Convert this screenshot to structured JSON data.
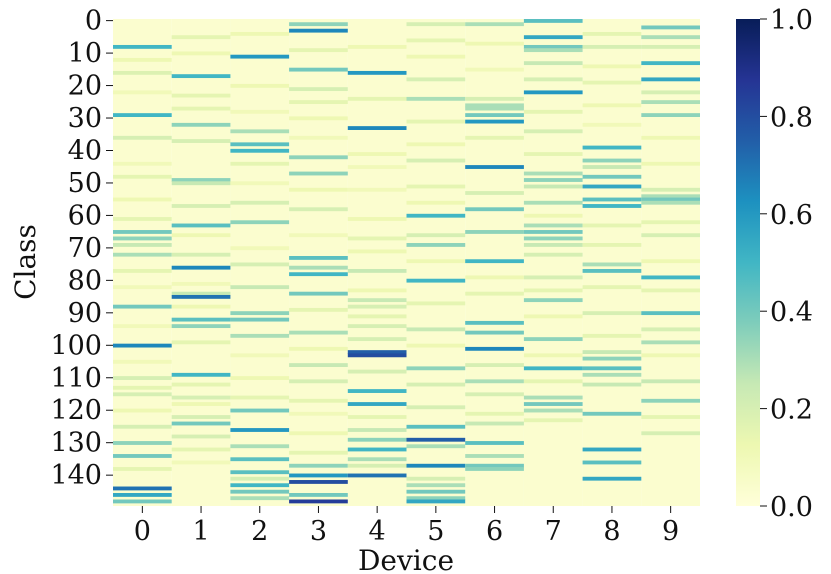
{
  "chart_data": {
    "type": "heatmap",
    "xlabel": "Device",
    "ylabel": "Class",
    "x_categories": [
      "0",
      "1",
      "2",
      "3",
      "4",
      "5",
      "6",
      "7",
      "8",
      "9"
    ],
    "y_tick_labels": [
      "0",
      "10",
      "20",
      "30",
      "40",
      "50",
      "60",
      "70",
      "80",
      "90",
      "100",
      "110",
      "120",
      "130",
      "140"
    ],
    "y_range": [
      0,
      149
    ],
    "colormap": "YlGnBu",
    "colorbar": {
      "range": [
        0.0,
        1.0
      ],
      "tick_labels": [
        "0.0",
        "0.2",
        "0.4",
        "0.6",
        "0.8",
        "1.0"
      ],
      "colors": [
        "#ffffd9",
        "#edf8b1",
        "#c7e9b4",
        "#7fcdbb",
        "#41b6c4",
        "#1d91c0",
        "#225ea8",
        "#253494",
        "#081d58"
      ]
    },
    "background_value": 0.03,
    "grid": false,
    "highlights": [
      {
        "device": 0,
        "cells": [
          [
            8,
            0.5
          ],
          [
            12,
            0.12
          ],
          [
            16,
            0.18
          ],
          [
            22,
            0.1
          ],
          [
            29,
            0.5
          ],
          [
            36,
            0.2
          ],
          [
            44,
            0.1
          ],
          [
            48,
            0.15
          ],
          [
            55,
            0.12
          ],
          [
            61,
            0.15
          ],
          [
            65,
            0.4
          ],
          [
            67,
            0.35
          ],
          [
            69,
            0.25
          ],
          [
            72,
            0.3
          ],
          [
            77,
            0.15
          ],
          [
            82,
            0.1
          ],
          [
            88,
            0.4
          ],
          [
            94,
            0.1
          ],
          [
            100,
            0.65
          ],
          [
            105,
            0.1
          ],
          [
            110,
            0.2
          ],
          [
            113,
            0.15
          ],
          [
            115,
            0.2
          ],
          [
            120,
            0.12
          ],
          [
            125,
            0.2
          ],
          [
            130,
            0.35
          ],
          [
            134,
            0.4
          ],
          [
            138,
            0.15
          ],
          [
            144,
            0.7
          ],
          [
            146,
            0.55
          ],
          [
            148,
            0.4
          ]
        ]
      },
      {
        "device": 1,
        "cells": [
          [
            5,
            0.15
          ],
          [
            10,
            0.12
          ],
          [
            17,
            0.5
          ],
          [
            23,
            0.15
          ],
          [
            27,
            0.15
          ],
          [
            32,
            0.35
          ],
          [
            37,
            0.2
          ],
          [
            49,
            0.35
          ],
          [
            50,
            0.25
          ],
          [
            57,
            0.2
          ],
          [
            63,
            0.45
          ],
          [
            66,
            0.12
          ],
          [
            72,
            0.2
          ],
          [
            76,
            0.65
          ],
          [
            81,
            0.1
          ],
          [
            84,
            0.25
          ],
          [
            85,
            0.7
          ],
          [
            88,
            0.12
          ],
          [
            92,
            0.45
          ],
          [
            94,
            0.35
          ],
          [
            99,
            0.15
          ],
          [
            109,
            0.5
          ],
          [
            112,
            0.15
          ],
          [
            116,
            0.2
          ],
          [
            118,
            0.12
          ],
          [
            122,
            0.2
          ],
          [
            124,
            0.4
          ],
          [
            128,
            0.2
          ],
          [
            132,
            0.15
          ],
          [
            136,
            0.1
          ]
        ]
      },
      {
        "device": 2,
        "cells": [
          [
            4,
            0.12
          ],
          [
            11,
            0.6
          ],
          [
            20,
            0.12
          ],
          [
            28,
            0.1
          ],
          [
            34,
            0.3
          ],
          [
            38,
            0.45
          ],
          [
            40,
            0.5
          ],
          [
            44,
            0.15
          ],
          [
            50,
            0.1
          ],
          [
            56,
            0.2
          ],
          [
            62,
            0.35
          ],
          [
            70,
            0.1
          ],
          [
            75,
            0.2
          ],
          [
            82,
            0.25
          ],
          [
            90,
            0.35
          ],
          [
            92,
            0.4
          ],
          [
            97,
            0.3
          ],
          [
            103,
            0.1
          ],
          [
            110,
            0.12
          ],
          [
            116,
            0.15
          ],
          [
            120,
            0.4
          ],
          [
            126,
            0.6
          ],
          [
            131,
            0.3
          ],
          [
            135,
            0.45
          ],
          [
            139,
            0.45
          ],
          [
            141,
            0.2
          ],
          [
            143,
            0.5
          ],
          [
            145,
            0.4
          ],
          [
            147,
            0.3
          ]
        ]
      },
      {
        "device": 3,
        "cells": [
          [
            1,
            0.35
          ],
          [
            3,
            0.65
          ],
          [
            9,
            0.15
          ],
          [
            15,
            0.4
          ],
          [
            21,
            0.2
          ],
          [
            25,
            0.15
          ],
          [
            30,
            0.12
          ],
          [
            36,
            0.1
          ],
          [
            42,
            0.35
          ],
          [
            47,
            0.35
          ],
          [
            52,
            0.12
          ],
          [
            58,
            0.2
          ],
          [
            66,
            0.1
          ],
          [
            73,
            0.45
          ],
          [
            76,
            0.3
          ],
          [
            78,
            0.5
          ],
          [
            84,
            0.4
          ],
          [
            89,
            0.15
          ],
          [
            96,
            0.3
          ],
          [
            101,
            0.12
          ],
          [
            106,
            0.25
          ],
          [
            111,
            0.2
          ],
          [
            117,
            0.15
          ],
          [
            121,
            0.1
          ],
          [
            127,
            0.12
          ],
          [
            133,
            0.15
          ],
          [
            137,
            0.35
          ],
          [
            140,
            0.6
          ],
          [
            142,
            0.8
          ],
          [
            146,
            0.4
          ],
          [
            148,
            0.85
          ]
        ]
      },
      {
        "device": 4,
        "cells": [
          [
            8,
            0.12
          ],
          [
            16,
            0.6
          ],
          [
            24,
            0.15
          ],
          [
            33,
            0.65
          ],
          [
            41,
            0.12
          ],
          [
            45,
            0.1
          ],
          [
            52,
            0.1
          ],
          [
            61,
            0.12
          ],
          [
            67,
            0.15
          ],
          [
            71,
            0.12
          ],
          [
            77,
            0.25
          ],
          [
            83,
            0.12
          ],
          [
            86,
            0.25
          ],
          [
            88,
            0.2
          ],
          [
            91,
            0.15
          ],
          [
            94,
            0.2
          ],
          [
            98,
            0.2
          ],
          [
            102,
            0.75
          ],
          [
            103,
            0.8
          ],
          [
            108,
            0.2
          ],
          [
            114,
            0.5
          ],
          [
            118,
            0.55
          ],
          [
            122,
            0.15
          ],
          [
            126,
            0.25
          ],
          [
            129,
            0.35
          ],
          [
            132,
            0.5
          ],
          [
            135,
            0.3
          ],
          [
            137,
            0.2
          ],
          [
            140,
            0.7
          ]
        ]
      },
      {
        "device": 5,
        "cells": [
          [
            1,
            0.2
          ],
          [
            6,
            0.15
          ],
          [
            11,
            0.12
          ],
          [
            18,
            0.2
          ],
          [
            24,
            0.3
          ],
          [
            31,
            0.15
          ],
          [
            38,
            0.12
          ],
          [
            43,
            0.2
          ],
          [
            51,
            0.15
          ],
          [
            56,
            0.12
          ],
          [
            60,
            0.5
          ],
          [
            66,
            0.2
          ],
          [
            69,
            0.35
          ],
          [
            74,
            0.12
          ],
          [
            80,
            0.5
          ],
          [
            87,
            0.15
          ],
          [
            95,
            0.25
          ],
          [
            100,
            0.12
          ],
          [
            107,
            0.35
          ],
          [
            112,
            0.2
          ],
          [
            119,
            0.2
          ],
          [
            125,
            0.45
          ],
          [
            129,
            0.75
          ],
          [
            131,
            0.3
          ],
          [
            137,
            0.65
          ],
          [
            141,
            0.2
          ],
          [
            143,
            0.3
          ],
          [
            145,
            0.4
          ],
          [
            147,
            0.35
          ],
          [
            148,
            0.55
          ]
        ]
      },
      {
        "device": 6,
        "cells": [
          [
            1,
            0.3
          ],
          [
            7,
            0.12
          ],
          [
            15,
            0.1
          ],
          [
            24,
            0.2
          ],
          [
            26,
            0.3
          ],
          [
            27,
            0.3
          ],
          [
            29,
            0.4
          ],
          [
            31,
            0.6
          ],
          [
            36,
            0.15
          ],
          [
            45,
            0.65
          ],
          [
            53,
            0.2
          ],
          [
            58,
            0.4
          ],
          [
            65,
            0.35
          ],
          [
            74,
            0.5
          ],
          [
            79,
            0.12
          ],
          [
            84,
            0.15
          ],
          [
            93,
            0.45
          ],
          [
            96,
            0.4
          ],
          [
            101,
            0.65
          ],
          [
            106,
            0.2
          ],
          [
            111,
            0.3
          ],
          [
            115,
            0.2
          ],
          [
            121,
            0.15
          ],
          [
            124,
            0.25
          ],
          [
            130,
            0.45
          ],
          [
            134,
            0.3
          ],
          [
            137,
            0.4
          ],
          [
            138,
            0.35
          ]
        ]
      },
      {
        "device": 7,
        "cells": [
          [
            0,
            0.45
          ],
          [
            5,
            0.55
          ],
          [
            8,
            0.4
          ],
          [
            9,
            0.3
          ],
          [
            13,
            0.25
          ],
          [
            18,
            0.2
          ],
          [
            22,
            0.6
          ],
          [
            28,
            0.15
          ],
          [
            34,
            0.2
          ],
          [
            41,
            0.15
          ],
          [
            47,
            0.3
          ],
          [
            49,
            0.35
          ],
          [
            51,
            0.25
          ],
          [
            56,
            0.3
          ],
          [
            60,
            0.12
          ],
          [
            63,
            0.3
          ],
          [
            65,
            0.4
          ],
          [
            67,
            0.35
          ],
          [
            69,
            0.25
          ],
          [
            72,
            0.2
          ],
          [
            79,
            0.2
          ],
          [
            83,
            0.15
          ],
          [
            86,
            0.35
          ],
          [
            91,
            0.12
          ],
          [
            98,
            0.35
          ],
          [
            103,
            0.12
          ],
          [
            107,
            0.5
          ],
          [
            111,
            0.15
          ],
          [
            116,
            0.3
          ],
          [
            118,
            0.4
          ],
          [
            120,
            0.3
          ],
          [
            123,
            0.15
          ]
        ]
      },
      {
        "device": 8,
        "cells": [
          [
            4,
            0.15
          ],
          [
            8,
            0.2
          ],
          [
            14,
            0.12
          ],
          [
            19,
            0.15
          ],
          [
            26,
            0.12
          ],
          [
            32,
            0.1
          ],
          [
            39,
            0.5
          ],
          [
            43,
            0.35
          ],
          [
            45,
            0.25
          ],
          [
            48,
            0.4
          ],
          [
            51,
            0.55
          ],
          [
            55,
            0.45
          ],
          [
            57,
            0.5
          ],
          [
            63,
            0.15
          ],
          [
            69,
            0.15
          ],
          [
            75,
            0.3
          ],
          [
            77,
            0.45
          ],
          [
            82,
            0.15
          ],
          [
            90,
            0.2
          ],
          [
            97,
            0.15
          ],
          [
            102,
            0.25
          ],
          [
            104,
            0.35
          ],
          [
            107,
            0.45
          ],
          [
            109,
            0.3
          ],
          [
            112,
            0.25
          ],
          [
            121,
            0.4
          ],
          [
            132,
            0.55
          ],
          [
            136,
            0.45
          ],
          [
            141,
            0.55
          ]
        ]
      },
      {
        "device": 9,
        "cells": [
          [
            2,
            0.4
          ],
          [
            5,
            0.3
          ],
          [
            8,
            0.2
          ],
          [
            13,
            0.5
          ],
          [
            18,
            0.55
          ],
          [
            22,
            0.2
          ],
          [
            25,
            0.3
          ],
          [
            29,
            0.35
          ],
          [
            36,
            0.12
          ],
          [
            44,
            0.12
          ],
          [
            52,
            0.2
          ],
          [
            54,
            0.3
          ],
          [
            55,
            0.4
          ],
          [
            56,
            0.3
          ],
          [
            62,
            0.15
          ],
          [
            66,
            0.2
          ],
          [
            74,
            0.12
          ],
          [
            79,
            0.5
          ],
          [
            83,
            0.15
          ],
          [
            90,
            0.45
          ],
          [
            95,
            0.2
          ],
          [
            99,
            0.3
          ],
          [
            103,
            0.12
          ],
          [
            111,
            0.25
          ],
          [
            117,
            0.35
          ],
          [
            122,
            0.15
          ],
          [
            127,
            0.2
          ]
        ]
      }
    ]
  }
}
